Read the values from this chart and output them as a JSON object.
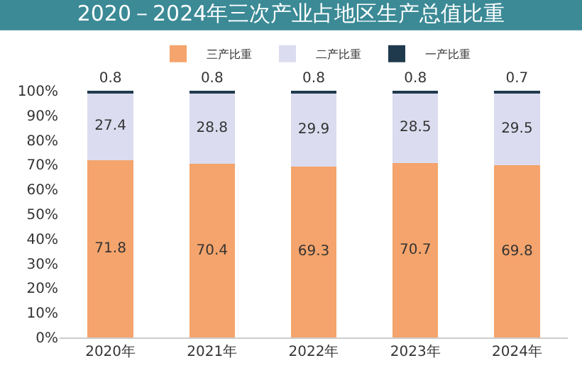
{
  "chart_data": {
    "type": "bar",
    "title": "2020－2024年三次产业占地区生产总值比重",
    "categories": [
      "2020年",
      "2021年",
      "2022年",
      "2023年",
      "2024年"
    ],
    "stacked": true,
    "series": [
      {
        "name": "三产比重",
        "color": "#f4a46c",
        "values": [
          71.8,
          70.4,
          69.3,
          70.7,
          69.8
        ]
      },
      {
        "name": "二产比重",
        "color": "#dcdcf0",
        "values": [
          27.4,
          28.8,
          29.9,
          28.5,
          29.5
        ]
      },
      {
        "name": "一产比重",
        "color": "#1f3a4d",
        "values": [
          0.8,
          0.8,
          0.8,
          0.8,
          0.7
        ]
      }
    ],
    "ylim": [
      0,
      100
    ],
    "yticks": [
      {
        "value": 0,
        "label": "0%"
      },
      {
        "value": 10,
        "label": "10%"
      },
      {
        "value": 20,
        "label": "20%"
      },
      {
        "value": 30,
        "label": "30%"
      },
      {
        "value": 40,
        "label": "40%"
      },
      {
        "value": 50,
        "label": "50%"
      },
      {
        "value": 60,
        "label": "60%"
      },
      {
        "value": 70,
        "label": "70%"
      },
      {
        "value": 80,
        "label": "80%"
      },
      {
        "value": 90,
        "label": "90%"
      },
      {
        "value": 100,
        "label": "100%"
      }
    ],
    "data_labels": true,
    "legend": "top"
  }
}
